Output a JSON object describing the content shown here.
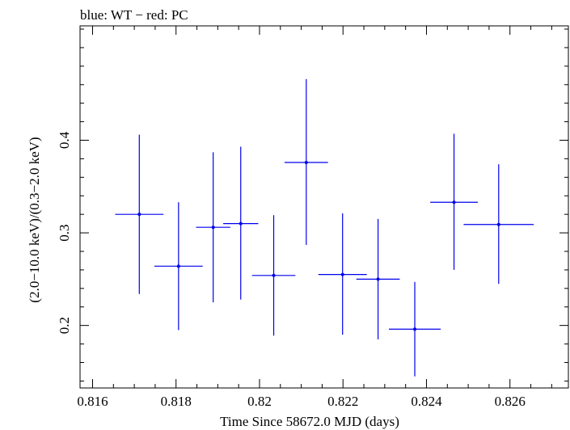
{
  "chart_data": {
    "type": "scatter",
    "title": "blue: WT − red: PC",
    "xlabel": "Time Since 58672.0 MJD (days)",
    "ylabel": "(2.0−10.0 keV)/(0.3−2.0 keV)",
    "xlim": [
      0.8157,
      0.8274
    ],
    "ylim": [
      0.1325,
      0.5235
    ],
    "x_ticks": [
      0.816,
      0.818,
      0.82,
      0.822,
      0.824,
      0.826
    ],
    "x_tick_labels": [
      "0.816",
      "0.818",
      "0.82",
      "0.822",
      "0.824",
      "0.826"
    ],
    "y_ticks": [
      0.2,
      0.3,
      0.4
    ],
    "y_tick_labels": [
      "0.2",
      "0.3",
      "0.4"
    ],
    "grid": false,
    "series": [
      {
        "color": "#0000ee",
        "points": [
          {
            "x": 0.81712,
            "xerr": 0.00058,
            "y": 0.32,
            "ylo": 0.234,
            "yhi": 0.406
          },
          {
            "x": 0.81806,
            "xerr": 0.00058,
            "y": 0.264,
            "ylo": 0.195,
            "yhi": 0.333
          },
          {
            "x": 0.81889,
            "xerr": 0.00041,
            "y": 0.306,
            "ylo": 0.225,
            "yhi": 0.387
          },
          {
            "x": 0.81955,
            "xerr": 0.00042,
            "y": 0.31,
            "ylo": 0.228,
            "yhi": 0.393
          },
          {
            "x": 0.82034,
            "xerr": 0.00052,
            "y": 0.254,
            "ylo": 0.189,
            "yhi": 0.319
          },
          {
            "x": 0.82112,
            "xerr": 0.00052,
            "y": 0.376,
            "ylo": 0.287,
            "yhi": 0.466
          },
          {
            "x": 0.82199,
            "xerr": 0.00058,
            "y": 0.255,
            "ylo": 0.19,
            "yhi": 0.321
          },
          {
            "x": 0.82284,
            "xerr": 0.00052,
            "y": 0.25,
            "ylo": 0.185,
            "yhi": 0.315
          },
          {
            "x": 0.82372,
            "xerr": 0.00062,
            "y": 0.196,
            "ylo": 0.145,
            "yhi": 0.247
          },
          {
            "x": 0.82466,
            "xerr": 0.00057,
            "y": 0.333,
            "ylo": 0.26,
            "yhi": 0.407
          },
          {
            "x": 0.82573,
            "xerr": 0.00084,
            "y": 0.309,
            "ylo": 0.245,
            "yhi": 0.374
          }
        ]
      }
    ]
  }
}
